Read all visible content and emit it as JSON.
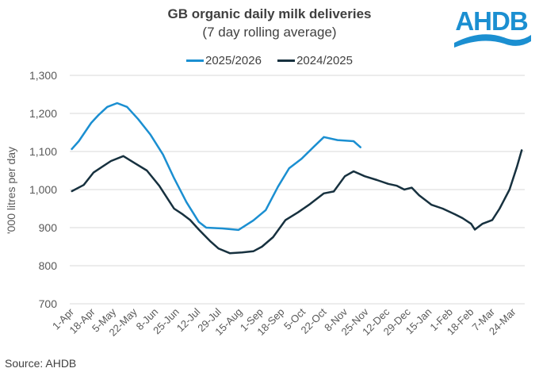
{
  "logo_text": "AHDB",
  "source": "Source: AHDB",
  "colors": {
    "series_2025": "#1b8fd1",
    "series_2024": "#17313f",
    "grid": "#d9d9d9",
    "text": "#595959"
  },
  "chart_data": {
    "type": "line",
    "title": "GB organic daily milk deliveries",
    "subtitle": "(7 day rolling average)",
    "ylabel": "'000 litres per day",
    "xlabel": "",
    "ylim": [
      700,
      1300
    ],
    "yticks": [
      "700",
      "800",
      "900",
      "1,000",
      "1,100",
      "1,200",
      "1,300"
    ],
    "ytick_values": [
      700,
      800,
      900,
      1000,
      1100,
      1200,
      1300
    ],
    "xticks": [
      "1-Apr",
      "18-Apr",
      "5-May",
      "22-May",
      "8-Jun",
      "25-Jun",
      "12-Jul",
      "29-Jul",
      "15-Aug",
      "1-Sep",
      "18-Sep",
      "5-Oct",
      "22-Oct",
      "8-Nov",
      "25-Nov",
      "12-Dec",
      "29-Dec",
      "15-Jan",
      "1-Feb",
      "18-Feb",
      "7-Mar",
      "24-Mar"
    ],
    "grid": "horizontal",
    "legend": "top-center",
    "series": [
      {
        "name": "2025/2026",
        "color": "#1b8fd1",
        "points": [
          [
            "1-Apr",
            1105
          ],
          [
            "7-Apr",
            1127
          ],
          [
            "17-Apr",
            1175
          ],
          [
            "23-Apr",
            1196
          ],
          [
            "30-Apr",
            1217
          ],
          [
            "8-May",
            1227
          ],
          [
            "16-May",
            1217
          ],
          [
            "25-May",
            1185
          ],
          [
            "4-Jun",
            1144
          ],
          [
            "14-Jun",
            1092
          ],
          [
            "23-Jun",
            1030
          ],
          [
            "3-Jul",
            967
          ],
          [
            "13-Jul",
            915
          ],
          [
            "19-Jul",
            900
          ],
          [
            "1-Aug",
            898
          ],
          [
            "14-Aug",
            894
          ],
          [
            "26-Aug",
            919
          ],
          [
            "5-Sep",
            946
          ],
          [
            "15-Sep",
            1008
          ],
          [
            "24-Sep",
            1056
          ],
          [
            "4-Oct",
            1081
          ],
          [
            "14-Oct",
            1113
          ],
          [
            "22-Oct",
            1138
          ],
          [
            "2-Nov",
            1130
          ],
          [
            "15-Nov",
            1127
          ],
          [
            "21-Nov",
            1110
          ]
        ]
      },
      {
        "name": "2024/2025",
        "color": "#17313f",
        "points": [
          [
            "1-Apr",
            995
          ],
          [
            "11-Apr",
            1012
          ],
          [
            "19-Apr",
            1045
          ],
          [
            "3-May",
            1075
          ],
          [
            "13-May",
            1088
          ],
          [
            "22-May",
            1070
          ],
          [
            "1-Jun",
            1050
          ],
          [
            "11-Jun",
            1010
          ],
          [
            "17-Jun",
            980
          ],
          [
            "23-Jun",
            950
          ],
          [
            "30-Jun",
            935
          ],
          [
            "6-Jul",
            920
          ],
          [
            "13-Jul",
            895
          ],
          [
            "22-Jul",
            865
          ],
          [
            "29-Jul",
            845
          ],
          [
            "7-Aug",
            833
          ],
          [
            "17-Aug",
            835
          ],
          [
            "26-Aug",
            838
          ],
          [
            "2-Sep",
            850
          ],
          [
            "11-Sep",
            875
          ],
          [
            "21-Sep",
            920
          ],
          [
            "1-Oct",
            940
          ],
          [
            "10-Oct",
            960
          ],
          [
            "22-Oct",
            990
          ],
          [
            "30-Oct",
            995
          ],
          [
            "8-Nov",
            1035
          ],
          [
            "15-Nov",
            1048
          ],
          [
            "24-Nov",
            1035
          ],
          [
            "4-Dec",
            1025
          ],
          [
            "13-Dec",
            1015
          ],
          [
            "20-Dec",
            1010
          ],
          [
            "26-Dec",
            1000
          ],
          [
            "1-Jan",
            1005
          ],
          [
            "7-Jan",
            985
          ],
          [
            "17-Jan",
            960
          ],
          [
            "26-Jan",
            950
          ],
          [
            "5-Feb",
            935
          ],
          [
            "11-Feb",
            925
          ],
          [
            "18-Feb",
            910
          ],
          [
            "21-Feb",
            895
          ],
          [
            "27-Feb",
            910
          ],
          [
            "7-Mar",
            920
          ],
          [
            "13-Mar",
            950
          ],
          [
            "21-Mar",
            1000
          ],
          [
            "27-Mar",
            1060
          ],
          [
            "31-Mar",
            1105
          ]
        ]
      }
    ]
  }
}
